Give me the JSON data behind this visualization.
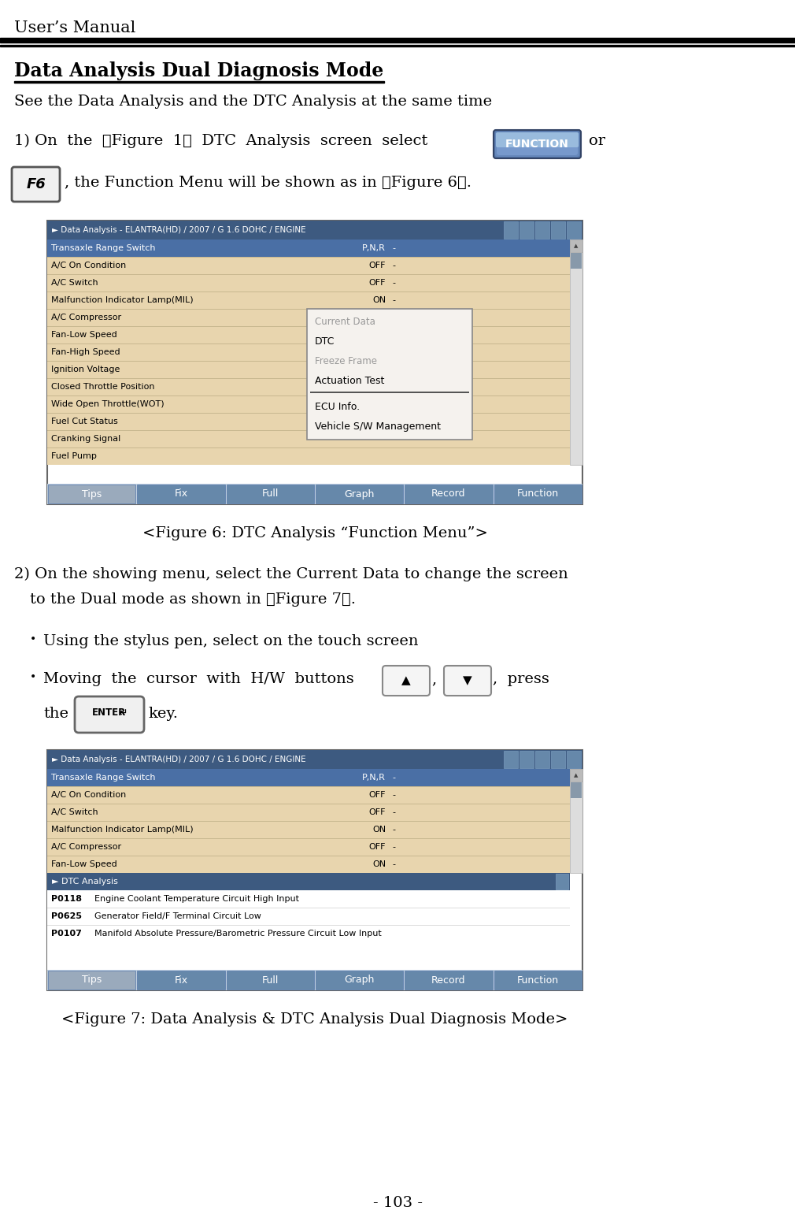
{
  "page_title": "User’s Manual",
  "section_title": "Data Analysis Dual Diagnosis Mode",
  "subtitle": "See the Data Analysis and the DTC Analysis at the same time",
  "function_btn_text": "FUNCTION",
  "f6_text": "F6",
  "fig6_caption": "<Figure 6: DTC Analysis “Function Menu”>",
  "fig7_caption": "<Figure 7: Data Analysis & DTC Analysis Dual Diagnosis Mode>",
  "page_number": "- 103 -",
  "bg_color": "#ffffff",
  "header_bar_color": "#000000",
  "title_bar_color": "#3d5a80",
  "row_highlight_color": "#4a6fa5",
  "row_bg_color": "#e8d5ae",
  "menu_bg_color": "#f5f2ee",
  "tab_bar_color": "#7090b0",
  "scrollbar_color": "#cccccc",
  "scrollbar_handle_color": "#7090b0",
  "screen1_rows": [
    [
      "Transaxle Range Switch",
      "P,N,R",
      "-"
    ],
    [
      "A/C On Condition",
      "OFF",
      "-"
    ],
    [
      "A/C Switch",
      "OFF",
      "-"
    ],
    [
      "Malfunction Indicator Lamp(MIL)",
      "ON",
      "-"
    ],
    [
      "A/C Compressor",
      "OFF",
      "-"
    ],
    [
      "Fan-Low Speed",
      "",
      ""
    ],
    [
      "Fan-High Speed",
      "",
      ""
    ],
    [
      "Ignition Voltage",
      "",
      ""
    ],
    [
      "Closed Throttle Position",
      "",
      ""
    ],
    [
      "Wide Open Throttle(WOT)",
      "",
      ""
    ],
    [
      "Fuel Cut Status",
      "",
      ""
    ],
    [
      "Cranking Signal",
      "",
      ""
    ],
    [
      "Fuel Pump",
      "",
      ""
    ]
  ],
  "menu_items": [
    "Current Data",
    "DTC",
    "Freeze Frame",
    "Actuation Test",
    "ECU Info.",
    "Vehicle S/W Management"
  ],
  "menu_enabled": [
    false,
    true,
    false,
    true,
    true,
    true
  ],
  "bottom_tabs": [
    "Tips",
    "Fix",
    "Full",
    "Graph",
    "Record",
    "Function"
  ],
  "screen2_rows": [
    [
      "Transaxle Range Switch",
      "P,N,R",
      "-"
    ],
    [
      "A/C On Condition",
      "OFF",
      "-"
    ],
    [
      "A/C Switch",
      "OFF",
      "-"
    ],
    [
      "Malfunction Indicator Lamp(MIL)",
      "ON",
      "-"
    ],
    [
      "A/C Compressor",
      "OFF",
      "-"
    ],
    [
      "Fan-Low Speed",
      "ON",
      "-"
    ]
  ],
  "dtc_rows": [
    [
      "P0118",
      "Engine Coolant Temperature Circuit High Input"
    ],
    [
      "P0625",
      "Generator Field/F Terminal Circuit Low"
    ],
    [
      "P0107",
      "Manifold Absolute Pressure/Barometric Pressure Circuit Low Input"
    ]
  ]
}
